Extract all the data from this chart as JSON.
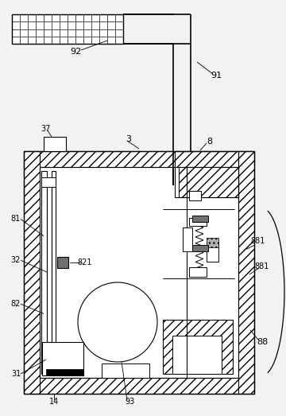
{
  "bg_color": "#f2f2f2",
  "figsize": [
    3.6,
    5.23
  ],
  "dpi": 100
}
